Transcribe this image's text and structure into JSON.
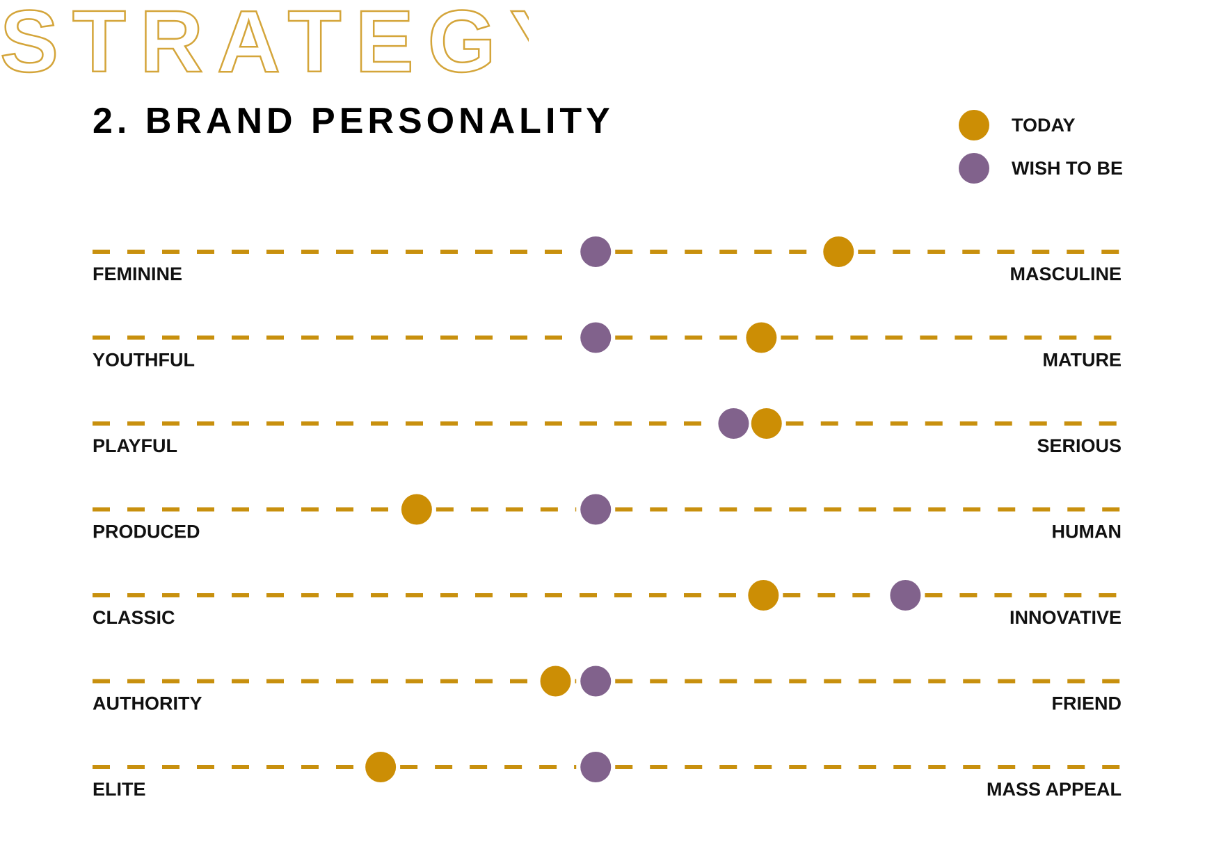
{
  "page": {
    "watermark": "STRATEGY",
    "heading": "2. BRAND PERSONALITY"
  },
  "colors": {
    "today": "#CC8E05",
    "wish": "#81628C",
    "line": "#C8900E",
    "watermark_stroke": "#D4A53A"
  },
  "legend": [
    {
      "key": "today",
      "label": "TODAY"
    },
    {
      "key": "wish",
      "label": "WISH TO BE"
    }
  ],
  "chart_data": {
    "type": "scatter",
    "title": "2. BRAND PERSONALITY",
    "xlim": [
      0,
      100
    ],
    "series": [
      {
        "name": "TODAY",
        "key": "today"
      },
      {
        "name": "WISH TO BE",
        "key": "wish"
      }
    ],
    "scales": [
      {
        "left": "FEMININE",
        "right": "MASCULINE",
        "today": 72.5,
        "wish": 48.9
      },
      {
        "left": "YOUTHFUL",
        "right": "MATURE",
        "today": 65.0,
        "wish": 48.9
      },
      {
        "left": "PLAYFUL",
        "right": "SERIOUS",
        "today": 65.5,
        "wish": 62.3
      },
      {
        "left": "PRODUCED",
        "right": "HUMAN",
        "today": 31.5,
        "wish": 48.9
      },
      {
        "left": "CLASSIC",
        "right": "INNOVATIVE",
        "today": 65.2,
        "wish": 79.0
      },
      {
        "left": "AUTHORITY",
        "right": "FRIEND",
        "today": 45.0,
        "wish": 48.9
      },
      {
        "left": "ELITE",
        "right": "MASS APPEAL",
        "today": 28.0,
        "wish": 48.9
      }
    ]
  }
}
